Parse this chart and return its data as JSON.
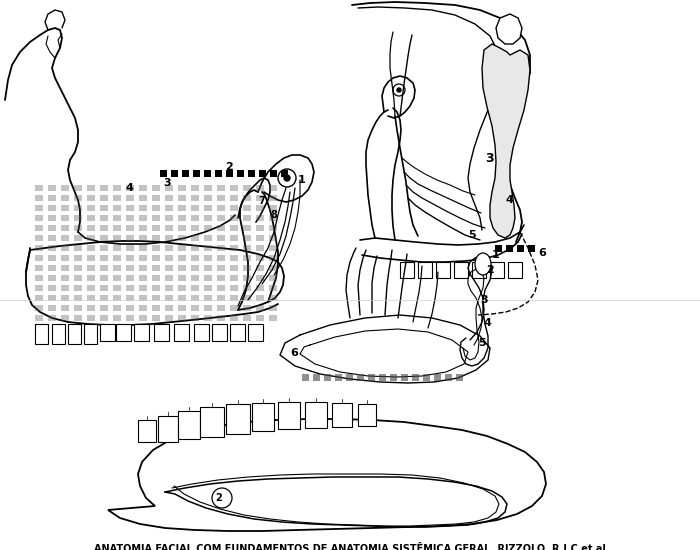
{
  "caption": "ANATOMIA FACIAL COM FUNDAMENTOS DE ANATOMIA SISTÊMICA GERAL, RIZZOLO, R.J.C et al",
  "caption_fontsize": 7.0,
  "caption_fontweight": "bold",
  "bg_color": "#ffffff",
  "fig_width": 7.0,
  "fig_height": 5.5,
  "dpi": 100
}
